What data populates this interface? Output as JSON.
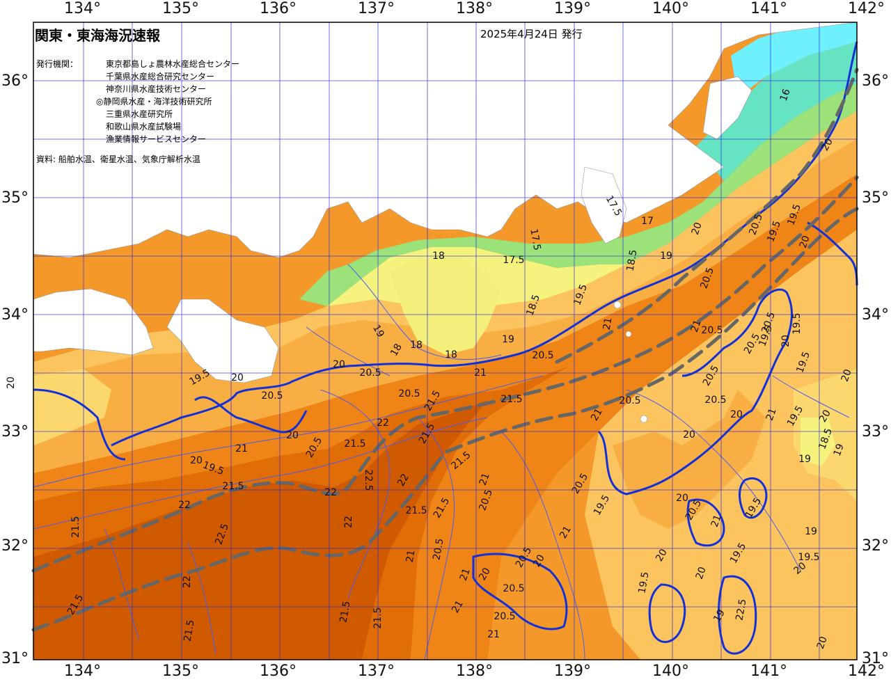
{
  "header": {
    "title": "関東・東海海況速報",
    "date": "2025年4月24日 発行"
  },
  "issuers": {
    "label": "発行機関：",
    "institutions": [
      "東京都島しょ農林水産総合センター",
      "千葉県水産総合研究センター",
      "神奈川県水産技術センター",
      "◎静岡県水産・海洋技術研究所",
      "三重県水産研究所",
      "和歌山県水産試験場",
      "漁業情報サービスセンター"
    ]
  },
  "sources": "資料: 船舶水温、衛星水温、気象庁解析水温",
  "axes": {
    "lon_labels": [
      "134°",
      "135°",
      "136°",
      "137°",
      "138°",
      "139°",
      "140°",
      "141°",
      "142°"
    ],
    "lat_labels": [
      "36°",
      "35°",
      "34°",
      "33°",
      "32°",
      "31°"
    ]
  },
  "contour_labels": [
    {
      "t": "18"
    },
    {
      "t": "17.5"
    },
    {
      "t": "17.5"
    },
    {
      "t": "17"
    },
    {
      "t": "17.5"
    },
    {
      "t": "18"
    },
    {
      "t": "18.5"
    },
    {
      "t": "18.5"
    },
    {
      "t": "19"
    },
    {
      "t": "19.5"
    },
    {
      "t": "19"
    },
    {
      "t": "18"
    },
    {
      "t": "18"
    },
    {
      "t": "19"
    },
    {
      "t": "20"
    },
    {
      "t": "20"
    },
    {
      "t": "20.5"
    },
    {
      "t": "20.5"
    },
    {
      "t": "21"
    },
    {
      "t": "20.5"
    },
    {
      "t": "20.5"
    },
    {
      "t": "21"
    },
    {
      "t": "21.5"
    },
    {
      "t": "21.5"
    },
    {
      "t": "22"
    },
    {
      "t": "21.5"
    },
    {
      "t": "21.5"
    },
    {
      "t": "22"
    },
    {
      "t": "22.5"
    },
    {
      "t": "22"
    },
    {
      "t": "21.5"
    },
    {
      "t": "21"
    },
    {
      "t": "20.5"
    },
    {
      "t": "20"
    },
    {
      "t": "19.5"
    },
    {
      "t": "19.5"
    },
    {
      "t": "20"
    },
    {
      "t": "20"
    },
    {
      "t": "20.5"
    },
    {
      "t": "21.5"
    },
    {
      "t": "22"
    },
    {
      "t": "22.5"
    },
    {
      "t": "21.5"
    },
    {
      "t": "22"
    },
    {
      "t": "21.5"
    },
    {
      "t": "21.5"
    },
    {
      "t": "21.5"
    },
    {
      "t": "21"
    },
    {
      "t": "20.5"
    },
    {
      "t": "20.5"
    },
    {
      "t": "20.5"
    },
    {
      "t": "20.5"
    },
    {
      "t": "20"
    },
    {
      "t": "21"
    },
    {
      "t": "20.5"
    },
    {
      "t": "21"
    },
    {
      "t": "20.5"
    },
    {
      "t": "20.5"
    },
    {
      "t": "20.5"
    },
    {
      "t": "21"
    },
    {
      "t": "20"
    },
    {
      "t": "20.5"
    },
    {
      "t": "20"
    },
    {
      "t": "19.5"
    },
    {
      "t": "19.5"
    },
    {
      "t": "19.5"
    },
    {
      "t": "20"
    },
    {
      "t": "19.5"
    },
    {
      "t": "20"
    },
    {
      "t": "19.5"
    },
    {
      "t": "19.5"
    },
    {
      "t": "19"
    },
    {
      "t": "19"
    },
    {
      "t": "18.5"
    },
    {
      "t": "19"
    },
    {
      "t": "20"
    },
    {
      "t": "20.5"
    },
    {
      "t": "20.5"
    },
    {
      "t": "21"
    },
    {
      "t": "20"
    },
    {
      "t": "19.5"
    },
    {
      "t": "16"
    },
    {
      "t": "20"
    },
    {
      "t": "19.5"
    },
    {
      "t": "20"
    },
    {
      "t": "20.5"
    },
    {
      "t": "21"
    },
    {
      "t": "22.5"
    },
    {
      "t": "21.5"
    },
    {
      "t": "22"
    },
    {
      "t": "21.5"
    },
    {
      "t": "21.5"
    },
    {
      "t": "21"
    },
    {
      "t": "20"
    },
    {
      "t": "20.5"
    },
    {
      "t": "21"
    },
    {
      "t": "20.5"
    },
    {
      "t": "21"
    },
    {
      "t": "20"
    },
    {
      "t": "21"
    },
    {
      "t": "19.5"
    },
    {
      "t": "20"
    },
    {
      "t": "20"
    },
    {
      "t": "19.5"
    },
    {
      "t": "19.5"
    },
    {
      "t": "20"
    },
    {
      "t": "19"
    },
    {
      "t": "20"
    },
    {
      "t": "19"
    },
    {
      "t": "19.5"
    }
  ],
  "colors": {
    "land": "#ffffff",
    "grid": "#2a2ad8",
    "contour_main": "#1230d8",
    "contour_thin": "#4c5cf0",
    "kuroshio_axis": "#666666",
    "sst_22": "#cf5a00",
    "sst_21_5": "#e06d05",
    "sst_21": "#ef8417",
    "sst_20_5": "#f5982a",
    "sst_20": "#f8ae42",
    "sst_19_5": "#fbc45e",
    "sst_19": "#fcd76e",
    "sst_18": "#f5f27e",
    "sst_17": "#9be27a",
    "sst_16": "#66e3c3",
    "sst_15": "#6ff0ff"
  }
}
